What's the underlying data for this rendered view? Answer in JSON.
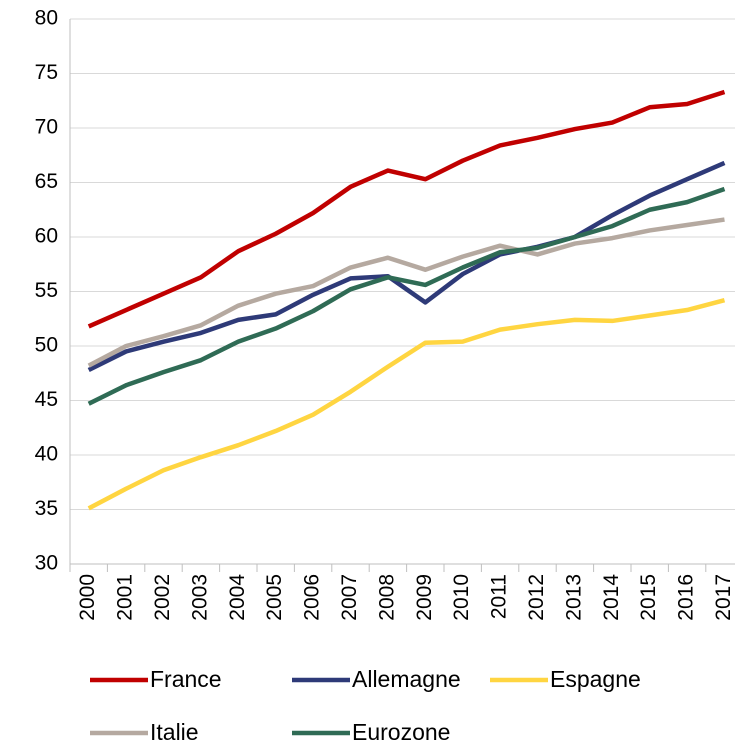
{
  "chart_data": {
    "type": "line",
    "categories": [
      "2000",
      "2001",
      "2002",
      "2003",
      "2004",
      "2005",
      "2006",
      "2007",
      "2008",
      "2009",
      "2010",
      "2011",
      "2012",
      "2013",
      "2014",
      "2015",
      "2016",
      "2017"
    ],
    "series": [
      {
        "name": "France",
        "color": "#c00000",
        "values": [
          51.8,
          53.3,
          54.8,
          56.3,
          58.7,
          60.3,
          62.2,
          64.6,
          66.1,
          65.3,
          67.0,
          68.4,
          69.1,
          69.9,
          70.5,
          71.9,
          72.2,
          73.3
        ]
      },
      {
        "name": "Allemagne",
        "color": "#2e3a78",
        "values": [
          47.8,
          49.5,
          50.4,
          51.2,
          52.4,
          52.9,
          54.7,
          56.2,
          56.4,
          54.0,
          56.6,
          58.4,
          59.1,
          60.0,
          62.0,
          63.8,
          65.3,
          66.8
        ]
      },
      {
        "name": "Espagne",
        "color": "#ffd541",
        "values": [
          35.1,
          36.9,
          38.6,
          39.8,
          40.9,
          42.2,
          43.7,
          45.8,
          48.1,
          50.3,
          50.4,
          51.5,
          52.0,
          52.4,
          52.3,
          52.8,
          53.3,
          54.2
        ]
      },
      {
        "name": "Italie",
        "color": "#b5a9a0",
        "values": [
          48.2,
          50.0,
          50.9,
          51.9,
          53.7,
          54.8,
          55.5,
          57.2,
          58.1,
          57.0,
          58.2,
          59.2,
          58.4,
          59.4,
          59.9,
          60.6,
          61.1,
          61.6
        ]
      },
      {
        "name": "Eurozone",
        "color": "#2f6b55",
        "values": [
          44.7,
          46.4,
          47.6,
          48.7,
          50.4,
          51.6,
          53.2,
          55.2,
          56.3,
          55.6,
          57.2,
          58.6,
          59.0,
          60.0,
          61.0,
          62.5,
          63.2,
          64.4
        ]
      }
    ],
    "ylim": [
      30,
      80
    ],
    "yticks": [
      30,
      35,
      40,
      45,
      50,
      55,
      60,
      65,
      70,
      75,
      80
    ],
    "grid": true
  }
}
